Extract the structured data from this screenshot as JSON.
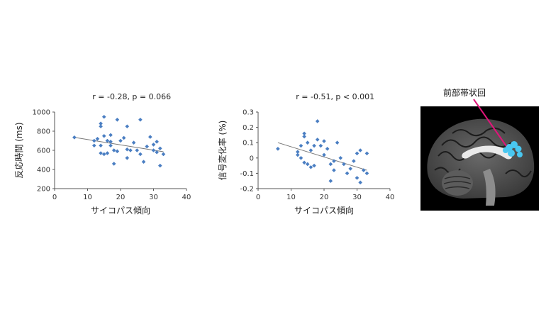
{
  "chart_data": [
    {
      "type": "scatter",
      "annotation": "r = -0.28, p = 0.066",
      "xlabel": "サイコパス傾向",
      "ylabel": "反応時間 (ms)",
      "xlim": [
        0,
        40
      ],
      "ylim": [
        200,
        1000
      ],
      "xticks": [
        0,
        10,
        20,
        30,
        40
      ],
      "yticks": [
        200,
        400,
        600,
        800,
        1000
      ],
      "marker_color": "#4a7ec2",
      "trendline": {
        "x": [
          6,
          33
        ],
        "y": [
          735,
          585
        ]
      },
      "points": [
        {
          "x": 6,
          "y": 735
        },
        {
          "x": 12,
          "y": 700
        },
        {
          "x": 12,
          "y": 650
        },
        {
          "x": 13,
          "y": 720
        },
        {
          "x": 14,
          "y": 880
        },
        {
          "x": 14,
          "y": 850
        },
        {
          "x": 14,
          "y": 650
        },
        {
          "x": 14,
          "y": 570
        },
        {
          "x": 15,
          "y": 950
        },
        {
          "x": 15,
          "y": 750
        },
        {
          "x": 15,
          "y": 560
        },
        {
          "x": 16,
          "y": 700
        },
        {
          "x": 16,
          "y": 570
        },
        {
          "x": 17,
          "y": 760
        },
        {
          "x": 17,
          "y": 690
        },
        {
          "x": 17,
          "y": 650
        },
        {
          "x": 18,
          "y": 600
        },
        {
          "x": 18,
          "y": 460
        },
        {
          "x": 19,
          "y": 920
        },
        {
          "x": 19,
          "y": 590
        },
        {
          "x": 20,
          "y": 700
        },
        {
          "x": 21,
          "y": 730
        },
        {
          "x": 22,
          "y": 850
        },
        {
          "x": 22,
          "y": 610
        },
        {
          "x": 22,
          "y": 520
        },
        {
          "x": 23,
          "y": 600
        },
        {
          "x": 24,
          "y": 680
        },
        {
          "x": 25,
          "y": 600
        },
        {
          "x": 26,
          "y": 920
        },
        {
          "x": 26,
          "y": 560
        },
        {
          "x": 27,
          "y": 480
        },
        {
          "x": 28,
          "y": 640
        },
        {
          "x": 29,
          "y": 740
        },
        {
          "x": 30,
          "y": 660
        },
        {
          "x": 30,
          "y": 600
        },
        {
          "x": 31,
          "y": 690
        },
        {
          "x": 31,
          "y": 580
        },
        {
          "x": 32,
          "y": 620
        },
        {
          "x": 32,
          "y": 440
        },
        {
          "x": 33,
          "y": 560
        }
      ]
    },
    {
      "type": "scatter",
      "annotation": "r = -0.51, p < 0.001",
      "xlabel": "サイコパス傾向",
      "ylabel": "信号変化率 (%)",
      "xlim": [
        0,
        40
      ],
      "ylim": [
        -0.2,
        0.3
      ],
      "xticks": [
        0,
        10,
        20,
        30,
        40
      ],
      "yticks": [
        -0.2,
        -0.1,
        0,
        0.1,
        0.2,
        0.3
      ],
      "marker_color": "#4a7ec2",
      "trendline": {
        "x": [
          6,
          33
        ],
        "y": [
          0.1,
          -0.08
        ]
      },
      "points": [
        {
          "x": 6,
          "y": 0.06
        },
        {
          "x": 12,
          "y": 0.02
        },
        {
          "x": 12,
          "y": 0.04
        },
        {
          "x": 13,
          "y": 0.08
        },
        {
          "x": 13,
          "y": 0.0
        },
        {
          "x": 14,
          "y": 0.16
        },
        {
          "x": 14,
          "y": 0.14
        },
        {
          "x": 14,
          "y": -0.03
        },
        {
          "x": 15,
          "y": 0.1
        },
        {
          "x": 15,
          "y": -0.04
        },
        {
          "x": 16,
          "y": 0.05
        },
        {
          "x": 16,
          "y": -0.06
        },
        {
          "x": 17,
          "y": 0.08
        },
        {
          "x": 17,
          "y": -0.05
        },
        {
          "x": 18,
          "y": 0.24
        },
        {
          "x": 18,
          "y": 0.12
        },
        {
          "x": 19,
          "y": 0.08
        },
        {
          "x": 20,
          "y": 0.11
        },
        {
          "x": 20,
          "y": 0.02
        },
        {
          "x": 21,
          "y": 0.06
        },
        {
          "x": 22,
          "y": -0.04
        },
        {
          "x": 22,
          "y": -0.15
        },
        {
          "x": 23,
          "y": -0.02
        },
        {
          "x": 23,
          "y": -0.08
        },
        {
          "x": 24,
          "y": 0.1
        },
        {
          "x": 25,
          "y": 0.0
        },
        {
          "x": 26,
          "y": -0.04
        },
        {
          "x": 27,
          "y": -0.1
        },
        {
          "x": 28,
          "y": -0.07
        },
        {
          "x": 29,
          "y": -0.02
        },
        {
          "x": 30,
          "y": 0.03
        },
        {
          "x": 30,
          "y": -0.13
        },
        {
          "x": 31,
          "y": 0.05
        },
        {
          "x": 31,
          "y": -0.16
        },
        {
          "x": 32,
          "y": -0.08
        },
        {
          "x": 33,
          "y": -0.1
        },
        {
          "x": 33,
          "y": 0.03
        }
      ]
    }
  ],
  "brain_image": {
    "label": "前部帯状回",
    "highlight_color": "#49c7f0",
    "pointer_color": "#e0157a"
  }
}
